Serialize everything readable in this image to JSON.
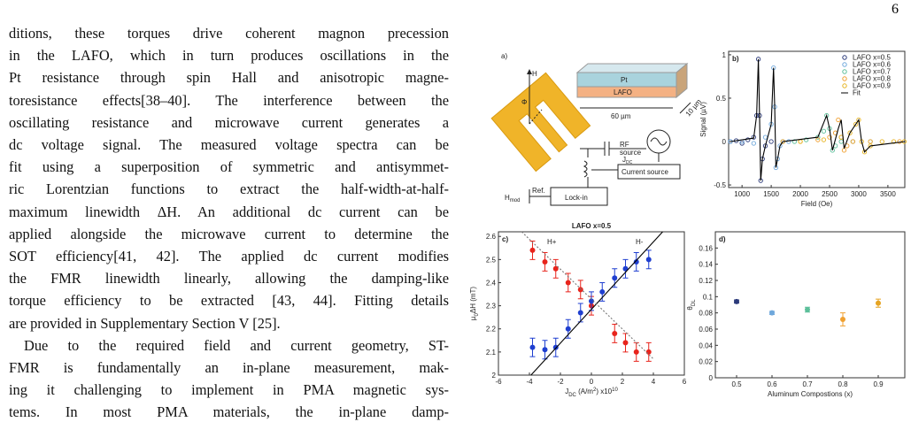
{
  "page_number": "6",
  "body": {
    "paragraphs": [
      [
        "ditions, these torques drive coherent magnon precession",
        "in the LAFO, which in turn produces oscillations in the",
        "Pt resistance through spin Hall and anisotropic magne-",
        "toresistance effects[38–40]. The interference between the",
        "oscillating resistance and microwave current generates a",
        "dc voltage signal. The measured voltage spectra can be",
        "fit using a superposition of symmetric and antisymmet-",
        "ric Lorentzian functions to extract the half-width-at-half-",
        "maximum linewidth ΔH. An additional dc current can be",
        "applied alongside the microwave current to determine the",
        "SOT efficiency[41, 42]. The applied dc current modifies",
        "the FMR linewidth linearly, allowing the damping-like",
        "torque efficiency to be extracted [43, 44]. Fitting details",
        "are provided in Supplementary Section V [25]."
      ],
      [
        "Due to the required field and current geometry, ST-",
        "FMR is fundamentally an in-plane measurement, mak-",
        "ing it challenging to implement in PMA magnetic sys-",
        "tems. In most PMA materials, the in-plane damp-"
      ]
    ]
  },
  "panel_a": {
    "label": "a)",
    "field": "H",
    "angle": "Φ",
    "top_layer": "Pt",
    "bottom_layer": "LAFO",
    "length": "60 µm",
    "width": "10 µm",
    "rf_source": [
      "RF",
      "source"
    ],
    "jdc": [
      "J",
      "DC"
    ],
    "current_source": "Current source",
    "hmod": [
      "H",
      "mod"
    ],
    "ref": "Ref.",
    "lockin": "Lock-in"
  },
  "chart_data": [
    {
      "type": "scatter",
      "label": "b)",
      "x_label": [
        {
          "text": "Field (Oe)"
        }
      ],
      "y_label": [
        {
          "text": "Signal (µV)"
        }
      ],
      "xlim": [
        770,
        3790
      ],
      "xticks": [
        1000,
        1500,
        2000,
        2500,
        3000,
        3500
      ],
      "ylim": [
        -0.53,
        1.04
      ],
      "yticks": [
        -0.5,
        0,
        0.5,
        1
      ],
      "legend": "top-right",
      "series": [
        {
          "name": "LAFO x=0.5",
          "color": "#2b3a7a",
          "kind": "points",
          "x": [
            800,
            900,
            1000,
            1100,
            1200,
            1250,
            1280,
            1300,
            1320,
            1350,
            1400,
            1500
          ],
          "values": [
            0,
            0.01,
            -0.02,
            0.02,
            0.05,
            0.3,
            0.95,
            0.3,
            -0.45,
            -0.2,
            -0.05,
            0
          ]
        },
        {
          "name": "LAFO x=0.6",
          "color": "#6fa8dc",
          "kind": "points",
          "x": [
            800,
            1000,
            1200,
            1400,
            1500,
            1540,
            1560,
            1580,
            1610,
            1650,
            1700,
            1800
          ],
          "values": [
            0,
            0,
            -0.02,
            0.05,
            0.2,
            0.85,
            0.4,
            -0.3,
            -0.2,
            -0.05,
            0,
            0
          ]
        },
        {
          "name": "LAFO x=0.7",
          "color": "#5cbf9a",
          "kind": "points",
          "x": [
            1700,
            1900,
            2100,
            2300,
            2400,
            2450,
            2500,
            2550,
            2600,
            2700,
            2900,
            3200
          ],
          "values": [
            0,
            0,
            0.02,
            0.05,
            0.12,
            0.3,
            0.15,
            -0.1,
            -0.05,
            0,
            0,
            0
          ]
        },
        {
          "name": "LAFO x=0.8",
          "color": "#f0a030",
          "kind": "points",
          "x": [
            1700,
            2000,
            2300,
            2500,
            2600,
            2650,
            2700,
            2750,
            2800,
            2900,
            3200,
            3700
          ],
          "values": [
            0,
            0,
            0.02,
            0.05,
            0.1,
            0.25,
            0.05,
            -0.1,
            -0.05,
            0,
            0,
            0
          ]
        },
        {
          "name": "LAFO x=0.9",
          "color": "#e6b422",
          "kind": "points",
          "x": [
            2000,
            2400,
            2700,
            2850,
            2950,
            3000,
            3050,
            3100,
            3200,
            3400,
            3600,
            3780
          ],
          "values": [
            0,
            0.02,
            0.05,
            0.1,
            0.2,
            0.25,
            0,
            -0.12,
            -0.05,
            0,
            0,
            0
          ]
        },
        {
          "name": "Fit",
          "color": "#000000",
          "kind": "line",
          "x": [
            800,
            1200,
            1250,
            1280,
            1300,
            1320,
            1350,
            1400,
            1500,
            1540,
            1560,
            1580,
            1610,
            1650,
            1700,
            2300,
            2450,
            2500,
            2550,
            2650,
            2700,
            2750,
            2850,
            3000,
            3050,
            3100,
            3200,
            3790
          ],
          "values": [
            0,
            0.04,
            0.3,
            0.95,
            0.3,
            -0.45,
            -0.2,
            -0.05,
            0.2,
            0.85,
            0.4,
            -0.3,
            -0.2,
            -0.05,
            0,
            0.05,
            0.3,
            0.15,
            -0.1,
            0.15,
            0.25,
            -0.08,
            0.1,
            0.25,
            0,
            -0.12,
            -0.05,
            0
          ]
        }
      ]
    },
    {
      "type": "scatter",
      "label": "c)",
      "title": "LAFO x=0.5",
      "x_label": [
        {
          "text": "J"
        },
        {
          "text": "DC",
          "shift": "sub"
        },
        {
          "text": " (A/m"
        },
        {
          "text": "2",
          "shift": "super"
        },
        {
          "text": ") x10"
        },
        {
          "text": "10",
          "shift": "super"
        }
      ],
      "y_label": [
        {
          "text": "µ"
        },
        {
          "text": "0",
          "shift": "sub"
        },
        {
          "text": "ΔH (mT)"
        }
      ],
      "xlim": [
        -6,
        6
      ],
      "xticks": [
        -6,
        -4,
        -2,
        0,
        2,
        4,
        6
      ],
      "ylim": [
        2,
        2.62
      ],
      "yticks": [
        2,
        2.1,
        2.2,
        2.3,
        2.4,
        2.5,
        2.6
      ],
      "annotations": [
        {
          "text": "H+",
          "color": "#e8241c"
        },
        {
          "text": "H-",
          "color": "#1f3fd0"
        }
      ],
      "series": [
        {
          "color": "#e8241c",
          "kind": "points",
          "x": [
            -3.8,
            -3.0,
            -2.3,
            -1.5,
            -0.7,
            0,
            1.5,
            2.2,
            2.9,
            3.7
          ],
          "values": [
            2.54,
            2.49,
            2.46,
            2.4,
            2.37,
            2.3,
            2.18,
            2.14,
            2.1,
            2.1
          ],
          "errors": [
            0.04,
            0.04,
            0.04,
            0.04,
            0.04,
            0.04,
            0.04,
            0.04,
            0.04,
            0.04
          ]
        },
        {
          "color": "#1f3fd0",
          "kind": "points",
          "x": [
            -3.8,
            -3.0,
            -2.3,
            -1.5,
            -0.7,
            0,
            0.7,
            1.5,
            2.2,
            2.9,
            3.7
          ],
          "values": [
            2.12,
            2.11,
            2.12,
            2.2,
            2.27,
            2.32,
            2.36,
            2.42,
            2.46,
            2.49,
            2.5
          ],
          "errors": [
            0.04,
            0.04,
            0.04,
            0.04,
            0.04,
            0.04,
            0.04,
            0.04,
            0.04,
            0.04,
            0.04
          ]
        },
        {
          "color": "#000000",
          "kind": "line",
          "x": [
            -3.9,
            4.6
          ],
          "values": [
            2.0,
            2.62
          ]
        },
        {
          "color": "#777777",
          "kind": "line",
          "dash": true,
          "x": [
            -4.5,
            4.0
          ],
          "values": [
            2.62,
            2.07
          ]
        }
      ]
    },
    {
      "type": "scatter",
      "label": "d)",
      "x_label": [
        {
          "text": "Aluminum Compostions (x)"
        }
      ],
      "y_label": [
        {
          "text": "θ"
        },
        {
          "text": "DL",
          "shift": "sub"
        }
      ],
      "xlim": [
        0.44,
        0.975
      ],
      "xticks": [
        0.5,
        0.6,
        0.7,
        0.8,
        0.9
      ],
      "ylim": [
        0,
        0.18
      ],
      "yticks": [
        0,
        0.02,
        0.04,
        0.06,
        0.08,
        0.1,
        0.12,
        0.14,
        0.16
      ],
      "series": [
        {
          "kind": "points",
          "colors": [
            "#2b3a7a",
            "#6fa8dc",
            "#5cbf9a",
            "#f0a030",
            "#e6a422"
          ],
          "x": [
            0.5,
            0.6,
            0.7,
            0.8,
            0.9
          ],
          "values": [
            0.094,
            0.08,
            0.084,
            0.072,
            0.092
          ],
          "errors": [
            0.002,
            0.002,
            0.003,
            0.008,
            0.005
          ]
        }
      ]
    }
  ]
}
